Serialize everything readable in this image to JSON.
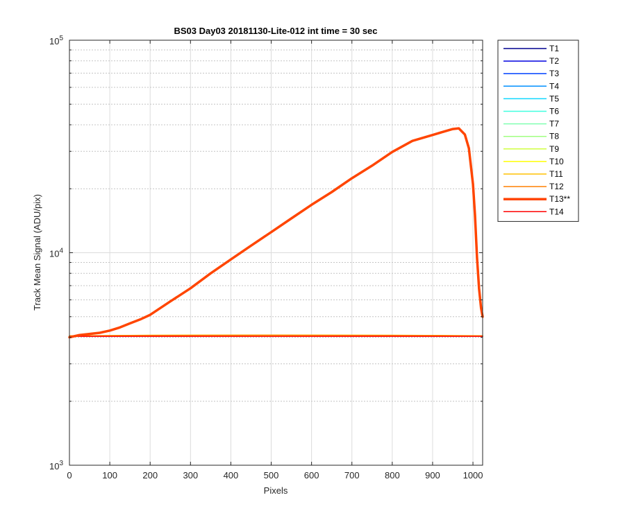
{
  "chart_data": {
    "type": "line",
    "title": "BS03 Day03 20181130-Lite-012 int time = 30 sec",
    "xlabel": "Pixels",
    "ylabel": "Track Mean Signal (ADU/pix)",
    "xlim": [
      0,
      1024
    ],
    "ylim": [
      1000,
      100000
    ],
    "yscale": "log",
    "xticks": [
      0,
      100,
      200,
      300,
      400,
      500,
      600,
      700,
      800,
      900,
      1000
    ],
    "ytick_labels": [
      {
        "base": "10",
        "exp": "3",
        "value": 1000
      },
      {
        "base": "10",
        "exp": "4",
        "value": 10000
      },
      {
        "base": "10",
        "exp": "5",
        "value": 100000
      }
    ],
    "grid": true,
    "legend_location": "outside-top-right",
    "series": [
      {
        "name": "T1",
        "color": "#00008f",
        "width": 1.5,
        "x": [
          0,
          1024
        ],
        "y": [
          4050,
          4050
        ]
      },
      {
        "name": "T2",
        "color": "#0000e0",
        "width": 1.5,
        "x": [
          0,
          1024
        ],
        "y": [
          4050,
          4050
        ]
      },
      {
        "name": "T3",
        "color": "#0040ff",
        "width": 1.5,
        "x": [
          0,
          1024
        ],
        "y": [
          4060,
          4060
        ]
      },
      {
        "name": "T4",
        "color": "#0090ff",
        "width": 1.5,
        "x": [
          0,
          1024
        ],
        "y": [
          4060,
          4060
        ]
      },
      {
        "name": "T5",
        "color": "#10d8ff",
        "width": 1.5,
        "x": [
          0,
          1024
        ],
        "y": [
          4060,
          4060
        ]
      },
      {
        "name": "T6",
        "color": "#40ffdf",
        "width": 1.5,
        "x": [
          0,
          1024
        ],
        "y": [
          4060,
          4060
        ]
      },
      {
        "name": "T7",
        "color": "#80ffb0",
        "width": 1.5,
        "x": [
          0,
          1024
        ],
        "y": [
          4060,
          4060
        ]
      },
      {
        "name": "T8",
        "color": "#a0ff80",
        "width": 1.5,
        "x": [
          0,
          1024
        ],
        "y": [
          4060,
          4060
        ]
      },
      {
        "name": "T9",
        "color": "#d0ff40",
        "width": 1.5,
        "x": [
          0,
          1024
        ],
        "y": [
          4060,
          4060
        ]
      },
      {
        "name": "T10",
        "color": "#ffff00",
        "width": 1.5,
        "x": [
          0,
          200,
          500,
          800,
          1024
        ],
        "y": [
          4060,
          4080,
          4090,
          4080,
          4060
        ]
      },
      {
        "name": "T11",
        "color": "#ffc000",
        "width": 1.5,
        "x": [
          0,
          200,
          500,
          800,
          1024
        ],
        "y": [
          4060,
          4090,
          4100,
          4090,
          4070
        ]
      },
      {
        "name": "T12",
        "color": "#ff8000",
        "width": 1.5,
        "x": [
          0,
          200,
          500,
          800,
          1024
        ],
        "y": [
          4060,
          4080,
          4090,
          4080,
          4060
        ]
      },
      {
        "name": "T13**",
        "color": "#ff4500",
        "width": 3.5,
        "x": [
          0,
          25,
          50,
          75,
          100,
          125,
          150,
          175,
          200,
          250,
          300,
          350,
          400,
          450,
          500,
          550,
          600,
          650,
          700,
          750,
          800,
          850,
          900,
          925,
          950,
          965,
          980,
          990,
          1000,
          1005,
          1010,
          1015,
          1020,
          1024
        ],
        "y": [
          4000,
          4100,
          4150,
          4200,
          4300,
          4450,
          4650,
          4850,
          5100,
          5900,
          6800,
          8000,
          9300,
          10800,
          12500,
          14500,
          16800,
          19300,
          22400,
          25700,
          29800,
          33600,
          35800,
          37000,
          38200,
          38500,
          36000,
          31000,
          21000,
          15000,
          9500,
          6800,
          5500,
          5000
        ]
      },
      {
        "name": "T14",
        "color": "#ff0000",
        "width": 1.5,
        "x": [
          0,
          1024
        ],
        "y": [
          4040,
          4040
        ]
      }
    ]
  }
}
